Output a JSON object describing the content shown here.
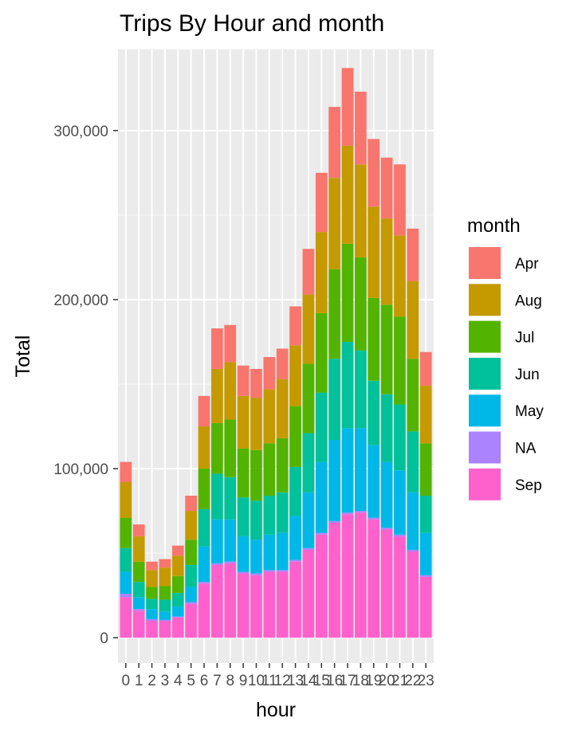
{
  "chart_data": {
    "type": "bar",
    "stacked": true,
    "title": "Trips By Hour and month",
    "xlabel": "hour",
    "ylabel": "Total",
    "ylim": [
      -15000,
      348000
    ],
    "y_ticks": [
      0,
      100000,
      200000,
      300000
    ],
    "y_tick_labels": [
      "0",
      "100,000",
      "200,000",
      "300,000"
    ],
    "categories": [
      "0",
      "1",
      "2",
      "3",
      "4",
      "5",
      "6",
      "7",
      "8",
      "9",
      "10",
      "11",
      "12",
      "13",
      "14",
      "15",
      "16",
      "17",
      "18",
      "19",
      "20",
      "21",
      "22",
      "23"
    ],
    "grid": true,
    "legend_position": "right",
    "legend_title": "month",
    "series": [
      {
        "name": "Sep",
        "color": "#FF61CC",
        "values": [
          24000,
          16000,
          10000,
          10000,
          12000,
          20000,
          32000,
          43000,
          44000,
          38000,
          37000,
          39000,
          39000,
          45000,
          52000,
          61000,
          68000,
          73000,
          74000,
          70000,
          64000,
          60000,
          51000,
          36000
        ]
      },
      {
        "name": "NA",
        "color": "#AB82FF",
        "values": [
          2000,
          1000,
          1000,
          500,
          500,
          1000,
          1000,
          1000,
          1000,
          1000,
          1000,
          1000,
          1000,
          1000,
          1000,
          1000,
          1000,
          1000,
          1000,
          1000,
          1000,
          1000,
          1000,
          1000
        ]
      },
      {
        "name": "May",
        "color": "#00B8E7",
        "values": [
          13000,
          7000,
          6000,
          5000,
          6000,
          9000,
          21000,
          26000,
          25000,
          21000,
          20000,
          21000,
          22000,
          26000,
          33000,
          42000,
          48000,
          50000,
          49000,
          43000,
          39000,
          38000,
          34000,
          25000
        ]
      },
      {
        "name": "Jun",
        "color": "#00C19A",
        "values": [
          14000,
          9000,
          6000,
          7000,
          8000,
          13000,
          22000,
          27000,
          25000,
          23000,
          23000,
          23000,
          24000,
          29000,
          35000,
          41000,
          48000,
          51000,
          46000,
          38000,
          40000,
          39000,
          36000,
          22000
        ]
      },
      {
        "name": "Jul",
        "color": "#53B400",
        "values": [
          18000,
          12000,
          7000,
          8000,
          10000,
          15000,
          24000,
          30000,
          34000,
          29000,
          30000,
          31000,
          32000,
          36000,
          41000,
          47000,
          53000,
          58000,
          55000,
          49000,
          53000,
          52000,
          43000,
          31000
        ]
      },
      {
        "name": "Aug",
        "color": "#C49A00",
        "values": [
          21000,
          15000,
          10000,
          11000,
          12000,
          17000,
          25000,
          32000,
          34000,
          31000,
          31000,
          32000,
          35000,
          36000,
          41000,
          48000,
          54000,
          58000,
          55000,
          54000,
          51000,
          48000,
          46000,
          34000
        ]
      },
      {
        "name": "Apr",
        "color": "#F8766D",
        "values": [
          12000,
          7000,
          5000,
          5000,
          6000,
          9000,
          18000,
          24000,
          22000,
          18000,
          17000,
          19000,
          18000,
          23000,
          27000,
          35000,
          42000,
          46000,
          43000,
          40000,
          36000,
          42000,
          31000,
          20000
        ]
      }
    ]
  }
}
